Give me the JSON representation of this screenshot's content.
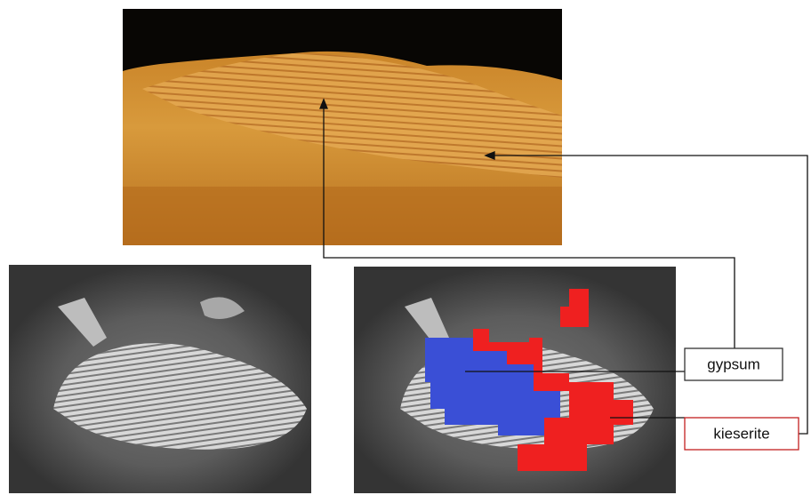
{
  "labels": {
    "gypsum": "gypsum",
    "kieserite": "kieserite"
  }
}
